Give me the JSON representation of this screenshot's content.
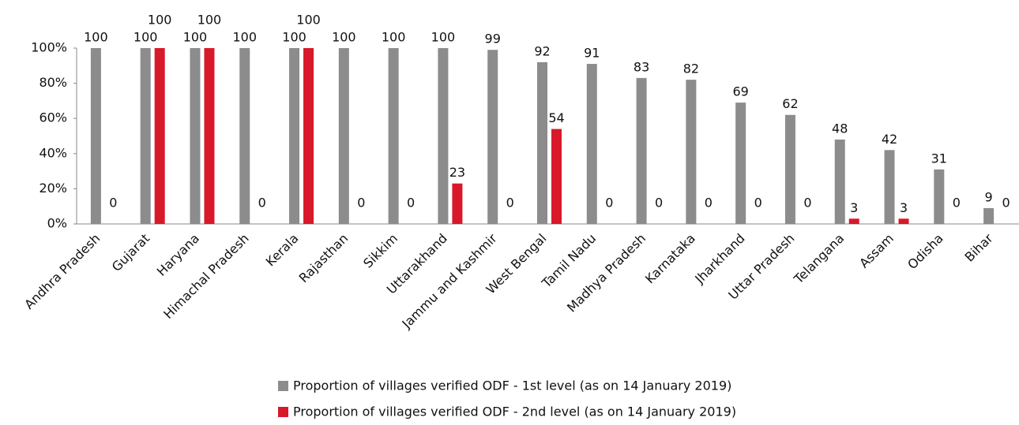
{
  "chart_data": {
    "type": "bar",
    "categories": [
      "Andhra Pradesh",
      "Gujarat",
      "Haryana",
      "Himachal Pradesh",
      "Kerala",
      "Rajasthan",
      "Sikkim",
      "Uttarakhand",
      "Jammu and Kashmir",
      "West Bengal",
      "Tamil Nadu",
      "Madhya Pradesh",
      "Karnataka",
      "Jharkhand",
      "Uttar Pradesh",
      "Telangana",
      "Assam",
      "Odisha",
      "Bihar"
    ],
    "series": [
      {
        "name": "Proportion of villages verified ODF - 1st level (as on 14 January 2019)",
        "color": "#8c8c8c",
        "values": [
          100,
          100,
          100,
          100,
          100,
          100,
          100,
          100,
          99,
          92,
          91,
          83,
          82,
          69,
          62,
          48,
          42,
          31,
          9
        ]
      },
      {
        "name": "Proportion of villages verified ODF - 2nd level (as on 14 January 2019)",
        "color": "#d7192a",
        "values": [
          0,
          100,
          100,
          0,
          100,
          0,
          0,
          23,
          0,
          54,
          0,
          0,
          0,
          0,
          0,
          3,
          3,
          0,
          0
        ]
      }
    ],
    "ylim": [
      0,
      100
    ],
    "yticks": [
      {
        "value": 0,
        "label": "0%"
      },
      {
        "value": 20,
        "label": "20%"
      },
      {
        "value": 40,
        "label": "40%"
      },
      {
        "value": 60,
        "label": "60%"
      },
      {
        "value": 80,
        "label": "80%"
      },
      {
        "value": 100,
        "label": "100%"
      }
    ],
    "grid": false,
    "legend": "bottom"
  }
}
